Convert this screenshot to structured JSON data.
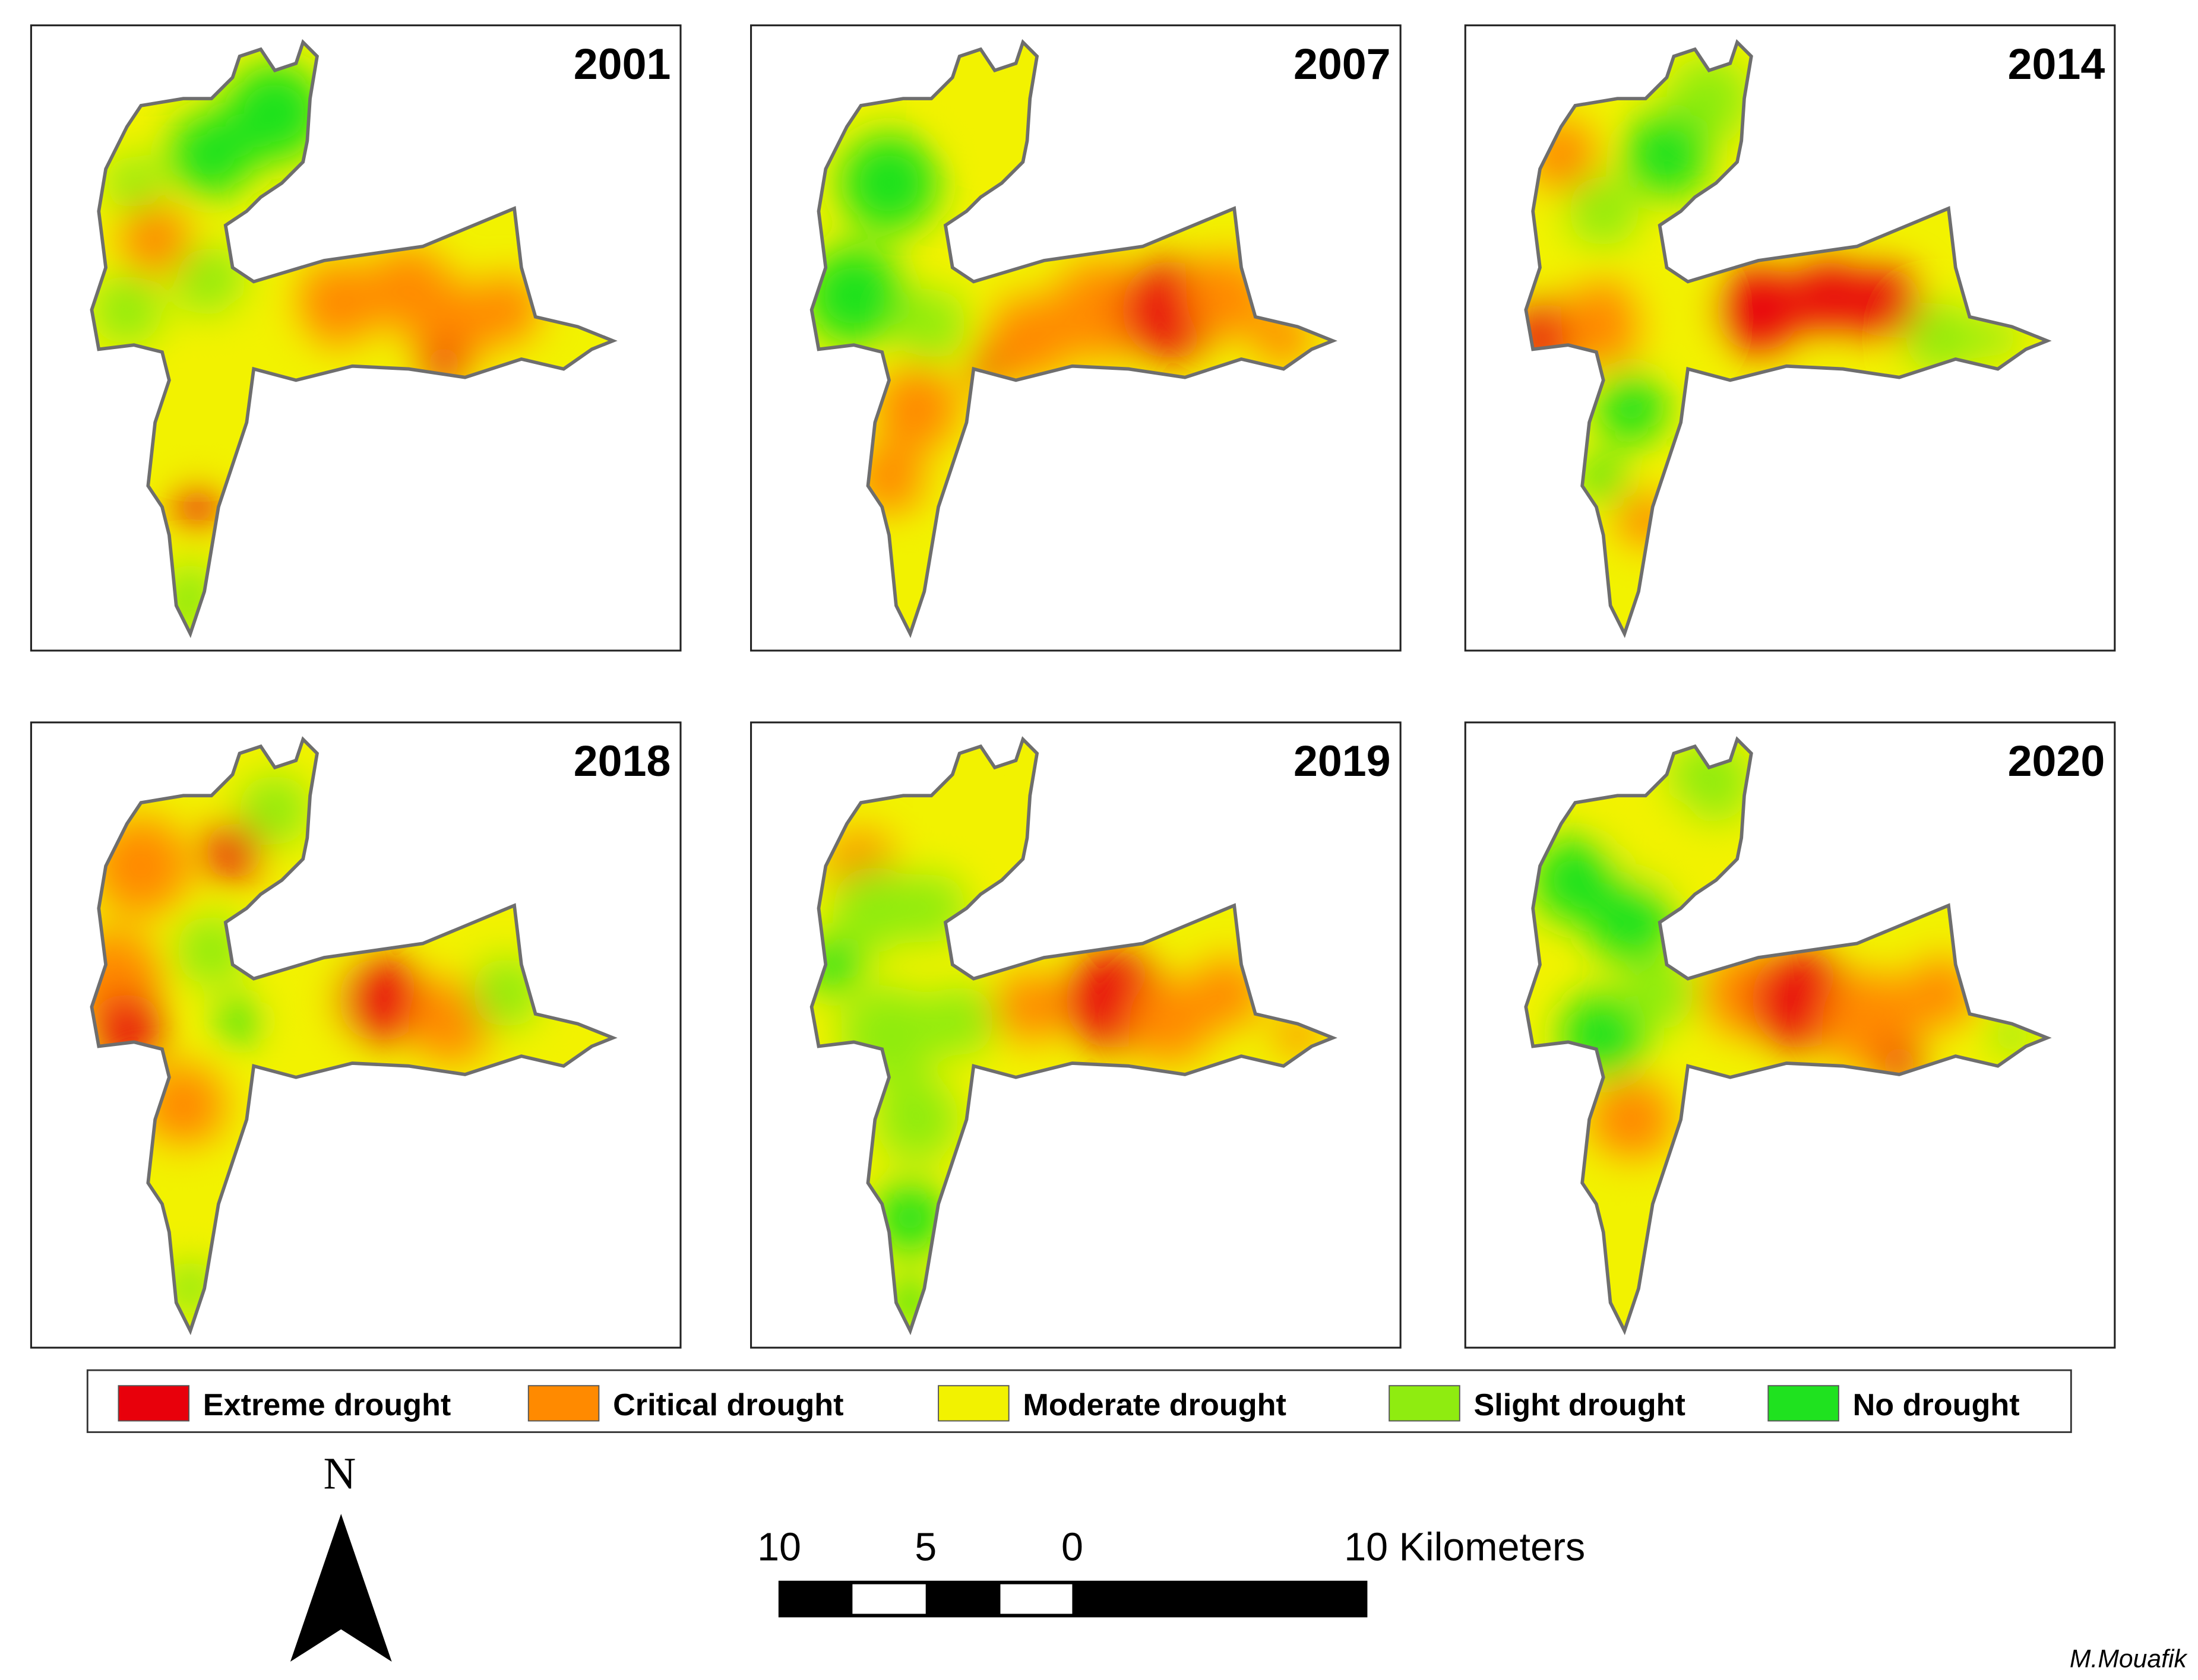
{
  "panels": [
    {
      "year": "2001"
    },
    {
      "year": "2007"
    },
    {
      "year": "2014"
    },
    {
      "year": "2018"
    },
    {
      "year": "2019"
    },
    {
      "year": "2020"
    }
  ],
  "legend": [
    {
      "label": "Extreme drought",
      "color": "#e8000b"
    },
    {
      "label": "Critical drought",
      "color": "#ff8a00"
    },
    {
      "label": "Moderate drought",
      "color": "#f2f200"
    },
    {
      "label": "Slight drought",
      "color": "#8fec10"
    },
    {
      "label": "No drought",
      "color": "#1fe21f"
    }
  ],
  "north": "N",
  "scale_bar": {
    "labels": [
      "10",
      "5",
      "0",
      "10 Kilometers"
    ]
  },
  "credit": "M.Mouafik"
}
